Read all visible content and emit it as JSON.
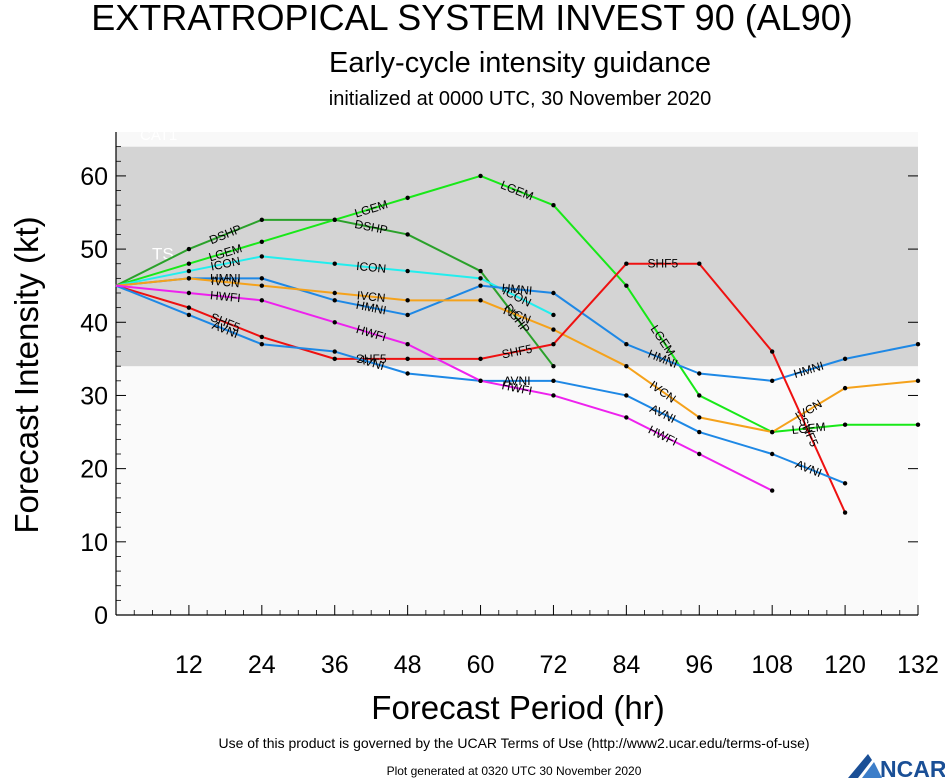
{
  "footer": {
    "terms": "Use of this product is governed by the UCAR Terms of Use (http://www2.ucar.edu/terms-of-use)",
    "generated": "Plot generated at 0320 UTC   30 November 2020",
    "logo": "NCAR"
  },
  "chart_data": {
    "type": "line",
    "title": "EXTRATROPICAL SYSTEM INVEST 90 (AL90)",
    "subtitle": "Early-cycle intensity guidance",
    "subtitle2": "initialized at 0000 UTC, 30 November 2020",
    "xlabel": "Forecast Period (hr)",
    "ylabel": "Forecast Intensity (kt)",
    "xlim": [
      0,
      132
    ],
    "ylim": [
      0,
      66
    ],
    "xticks": [
      12,
      24,
      36,
      48,
      60,
      72,
      84,
      96,
      108,
      120,
      132
    ],
    "yticks": [
      0,
      10,
      20,
      30,
      40,
      50,
      60
    ],
    "bands": [
      {
        "label": "TS",
        "from": 34,
        "to": 64,
        "color": "#d4d4d4"
      },
      {
        "label": "CAT1",
        "from": 64,
        "to": 66,
        "color": "#f8f8f8"
      }
    ],
    "series": [
      {
        "name": "DSHP",
        "color": "#2aa12a",
        "x": [
          0,
          12,
          24,
          36,
          48,
          60,
          72
        ],
        "y": [
          45,
          50,
          54,
          54,
          52,
          47,
          34
        ]
      },
      {
        "name": "LGEM",
        "color": "#18e818",
        "x": [
          0,
          12,
          24,
          36,
          48,
          60,
          72,
          84,
          96,
          108,
          120,
          132
        ],
        "y": [
          45,
          48,
          51,
          54,
          57,
          60,
          56,
          45,
          30,
          25,
          26,
          26
        ]
      },
      {
        "name": "ICON",
        "color": "#22eeee",
        "x": [
          0,
          12,
          24,
          36,
          48,
          60,
          72
        ],
        "y": [
          45,
          47,
          49,
          48,
          47,
          46,
          41
        ]
      },
      {
        "name": "HMNI",
        "color": "#1e88e5",
        "x": [
          0,
          12,
          24,
          36,
          48,
          60,
          72,
          84,
          96,
          108,
          120,
          132
        ],
        "y": [
          45,
          46,
          46,
          43,
          41,
          45,
          44,
          37,
          33,
          32,
          35,
          37
        ]
      },
      {
        "name": "IVCN",
        "color": "#f5a21b",
        "x": [
          0,
          12,
          24,
          36,
          48,
          60,
          72,
          84,
          96,
          108,
          120,
          132
        ],
        "y": [
          45,
          46,
          45,
          44,
          43,
          43,
          39,
          34,
          27,
          25,
          31,
          32
        ]
      },
      {
        "name": "SHF5",
        "color": "#ee1111",
        "x": [
          0,
          12,
          24,
          36,
          48,
          60,
          72,
          84,
          96,
          108,
          120
        ],
        "y": [
          45,
          42,
          38,
          35,
          35,
          35,
          37,
          48,
          48,
          36,
          14
        ]
      },
      {
        "name": "AVNI",
        "color": "#1e88e5",
        "x": [
          0,
          12,
          24,
          36,
          48,
          60,
          72,
          84,
          96,
          108,
          120
        ],
        "y": [
          45,
          41,
          37,
          36,
          33,
          32,
          32,
          30,
          25,
          22,
          18
        ]
      },
      {
        "name": "HWFI",
        "color": "#ee22ee",
        "x": [
          0,
          12,
          24,
          36,
          48,
          60,
          72,
          84,
          96,
          108
        ],
        "y": [
          45,
          44,
          43,
          40,
          37,
          32,
          30,
          27,
          22,
          17
        ]
      }
    ]
  }
}
